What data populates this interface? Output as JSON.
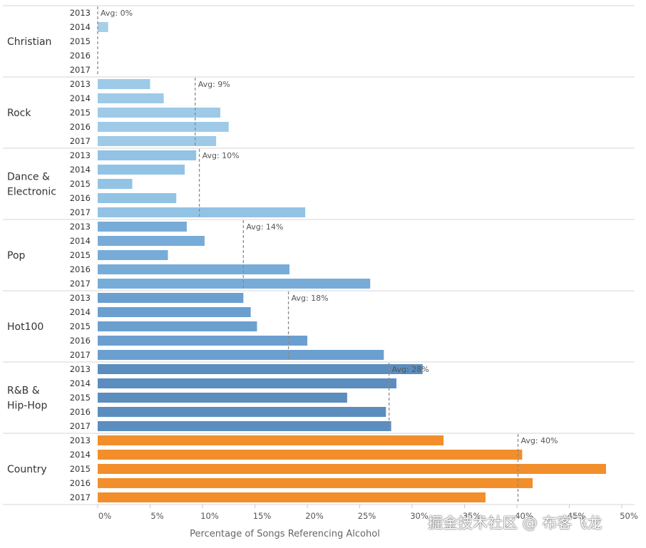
{
  "chart_data": {
    "type": "bar",
    "orientation": "horizontal",
    "xlabel": "Percentage of Songs Referencing Alcohol",
    "ticks": [
      "0%",
      "5%",
      "10%",
      "15%",
      "20%",
      "25%",
      "30%",
      "35%",
      "40%",
      "45%",
      "50%"
    ],
    "xlim": [
      0,
      50
    ],
    "years": [
      "2013",
      "2014",
      "2015",
      "2016",
      "2017"
    ],
    "groups": [
      {
        "name": "Christian",
        "label_lines": [
          "Christian"
        ],
        "color": "#a8cfe8",
        "values": [
          0,
          1,
          0,
          0,
          0
        ],
        "avg": 0,
        "avg_label": "Avg: 0%"
      },
      {
        "name": "Rock",
        "label_lines": [
          "Rock"
        ],
        "color": "#9ecae8",
        "values": [
          5,
          6.3,
          11.7,
          12.5,
          11.3
        ],
        "avg": 9.3,
        "avg_label": "Avg: 9%"
      },
      {
        "name": "Dance & Electronic",
        "label_lines": [
          "Dance &",
          "Electronic"
        ],
        "color": "#92c3e5",
        "values": [
          9.4,
          8.3,
          3.3,
          7.5,
          19.8
        ],
        "avg": 9.7,
        "avg_label": "Avg: 10%"
      },
      {
        "name": "Pop",
        "label_lines": [
          "Pop"
        ],
        "color": "#78acd8",
        "values": [
          8.5,
          10.2,
          6.7,
          18.3,
          26
        ],
        "avg": 13.9,
        "avg_label": "Avg: 14%"
      },
      {
        "name": "Hot100",
        "label_lines": [
          "Hot100"
        ],
        "color": "#6b9fd0",
        "values": [
          13.9,
          14.6,
          15.2,
          20,
          27.3
        ],
        "avg": 18.2,
        "avg_label": "Avg: 18%"
      },
      {
        "name": "R&B & Hip-Hop",
        "label_lines": [
          "R&B &",
          "Hip-Hop"
        ],
        "color": "#5b8dbf",
        "values": [
          31,
          28.5,
          23.8,
          27.5,
          28
        ],
        "avg": 27.8,
        "avg_label": "Avg: 28%"
      },
      {
        "name": "Country",
        "label_lines": [
          "Country"
        ],
        "color": "#f28e2b",
        "values": [
          33,
          40.5,
          48.5,
          41.5,
          37
        ],
        "avg": 40.1,
        "avg_label": "Avg: 40%"
      }
    ]
  },
  "watermark": "掘金技术社区 @ 布客飞龙"
}
